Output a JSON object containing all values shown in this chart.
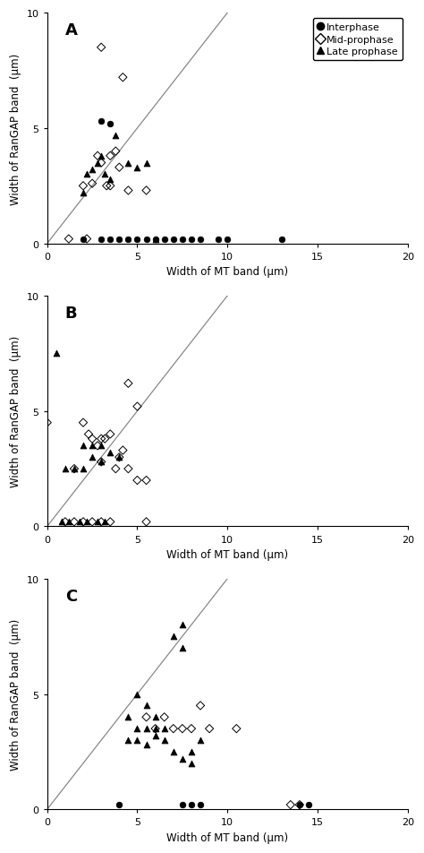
{
  "panels": [
    {
      "label": "A",
      "interphase": {
        "x": [
          2.0,
          3.0,
          3.5,
          4.0,
          4.5,
          5.0,
          5.5,
          6.0,
          6.5,
          7.0,
          7.5,
          8.0,
          8.5,
          9.5,
          10.0,
          13.0
        ],
        "y": [
          0.2,
          0.2,
          0.2,
          0.2,
          0.2,
          0.2,
          0.2,
          0.2,
          0.2,
          0.2,
          0.2,
          0.2,
          0.2,
          0.2,
          0.2,
          0.2
        ]
      },
      "interphase_high": {
        "x": [
          3.0,
          3.5
        ],
        "y": [
          5.3,
          5.2
        ]
      },
      "mid": {
        "x": [
          1.2,
          2.5,
          3.0,
          3.0,
          3.5,
          3.5,
          3.8,
          4.2,
          4.5,
          5.5,
          2.0,
          2.2,
          2.8,
          3.3,
          4.0
        ],
        "y": [
          0.2,
          2.6,
          3.5,
          8.5,
          3.8,
          2.5,
          4.0,
          7.2,
          2.3,
          2.3,
          2.5,
          0.2,
          3.8,
          2.5,
          3.3
        ]
      },
      "late": {
        "x": [
          2.0,
          2.2,
          2.5,
          2.8,
          3.0,
          3.2,
          3.5,
          3.8,
          4.5,
          5.0,
          5.5,
          6.0
        ],
        "y": [
          2.2,
          3.0,
          3.2,
          3.5,
          3.8,
          3.0,
          2.8,
          4.7,
          3.5,
          3.3,
          3.5,
          0.2
        ]
      }
    },
    {
      "label": "B",
      "interphase": {
        "x": [],
        "y": []
      },
      "interphase_high": {
        "x": [],
        "y": []
      },
      "mid": {
        "x": [
          0.0,
          1.5,
          2.0,
          2.3,
          2.5,
          2.8,
          3.0,
          3.0,
          3.2,
          3.5,
          3.8,
          4.0,
          4.2,
          4.5,
          4.5,
          5.0,
          5.0,
          5.5,
          1.0,
          1.5,
          2.0,
          2.5,
          3.0,
          3.5,
          5.5
        ],
        "y": [
          4.5,
          2.5,
          4.5,
          4.0,
          3.8,
          3.5,
          3.8,
          2.8,
          3.8,
          4.0,
          2.5,
          3.0,
          3.3,
          2.5,
          6.2,
          5.2,
          2.0,
          2.0,
          0.2,
          0.2,
          0.2,
          0.2,
          0.2,
          0.2,
          0.2
        ]
      },
      "late": {
        "x": [
          0.5,
          1.0,
          1.5,
          2.0,
          2.0,
          2.5,
          2.5,
          3.0,
          3.0,
          3.5,
          4.0,
          0.8,
          1.2,
          1.8,
          2.2,
          2.8,
          3.2
        ],
        "y": [
          7.5,
          2.5,
          2.5,
          3.5,
          2.5,
          3.0,
          3.5,
          3.5,
          2.8,
          3.2,
          3.0,
          0.2,
          0.2,
          0.2,
          0.2,
          0.2,
          0.2
        ]
      }
    },
    {
      "label": "C",
      "interphase": {
        "x": [
          4.0,
          7.5,
          8.0,
          8.5,
          14.0,
          14.5
        ],
        "y": [
          0.2,
          0.2,
          0.2,
          0.2,
          0.2,
          0.2
        ]
      },
      "interphase_high": {
        "x": [],
        "y": []
      },
      "mid": {
        "x": [
          5.5,
          6.0,
          6.5,
          7.0,
          7.5,
          8.0,
          8.5,
          9.0,
          10.5,
          13.5,
          14.0
        ],
        "y": [
          4.0,
          3.5,
          4.0,
          3.5,
          3.5,
          3.5,
          4.5,
          3.5,
          3.5,
          0.2,
          0.2
        ]
      },
      "late": {
        "x": [
          4.5,
          4.5,
          5.0,
          5.0,
          5.5,
          5.5,
          6.0,
          6.0,
          6.5,
          7.0,
          7.5,
          7.5,
          8.0,
          8.5,
          5.0,
          5.5,
          6.0,
          6.5,
          7.0,
          7.5,
          8.0
        ],
        "y": [
          3.0,
          4.0,
          3.0,
          3.5,
          2.8,
          3.5,
          3.2,
          3.5,
          3.5,
          7.5,
          7.0,
          8.0,
          2.5,
          3.0,
          5.0,
          4.5,
          4.0,
          3.0,
          2.5,
          2.2,
          2.0
        ]
      }
    }
  ],
  "xlim": [
    0,
    20
  ],
  "ylim": [
    0,
    10
  ],
  "xticks": [
    0,
    5,
    10,
    15,
    20
  ],
  "yticks": [
    0,
    5,
    10
  ],
  "xlabel": "Width of MT band (μm)",
  "ylabel": "Width of RanGAP band  (μm)",
  "line_color": "#888888",
  "marker_color": "#000000",
  "bg_color": "#ffffff"
}
